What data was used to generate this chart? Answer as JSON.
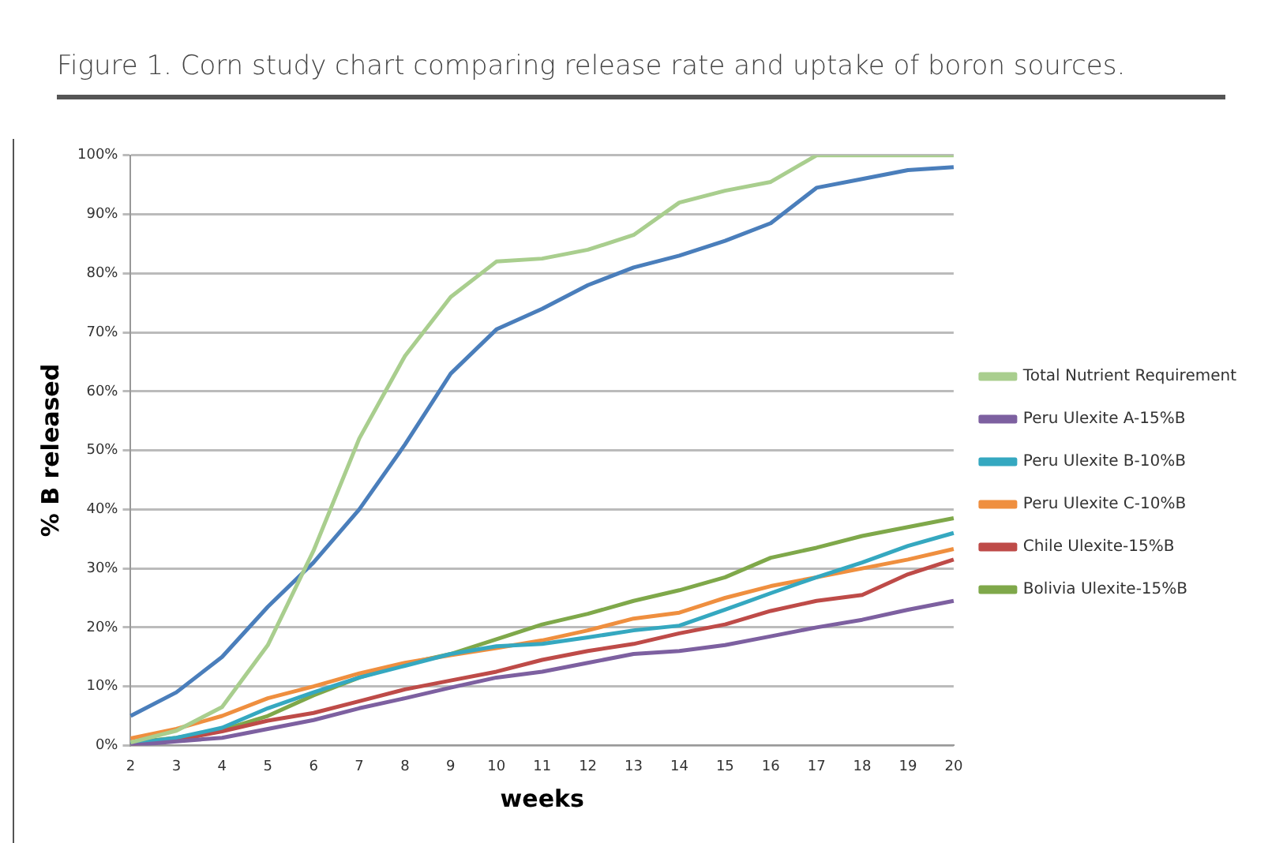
{
  "chart_data": {
    "type": "line",
    "title": "Figure 1. Corn study chart comparing release rate and uptake of boron sources.",
    "xlabel": "weeks",
    "ylabel": "% B released",
    "categories": [
      "2",
      "3",
      "4",
      "5",
      "6",
      "7",
      "8",
      "9",
      "10",
      "11",
      "12",
      "13",
      "14",
      "15",
      "16",
      "17",
      "18",
      "19",
      "20"
    ],
    "ylim": [
      0,
      100
    ],
    "yticks": [
      {
        "value": 0,
        "label": "0%"
      },
      {
        "value": 10,
        "label": "10%"
      },
      {
        "value": 20,
        "label": "20%"
      },
      {
        "value": 30,
        "label": "30%"
      },
      {
        "value": 40,
        "label": "40%"
      },
      {
        "value": 50,
        "label": "50%"
      },
      {
        "value": 60,
        "label": "60%"
      },
      {
        "value": 70,
        "label": "70%"
      },
      {
        "value": 80,
        "label": "80%"
      },
      {
        "value": 90,
        "label": "90%"
      },
      {
        "value": 100,
        "label": "100%"
      }
    ],
    "grid": "y",
    "legend": "right",
    "marker": "none",
    "line_style": "solid",
    "series": [
      {
        "name": "Total Nutrient Requirement",
        "color": "#a9ce8e",
        "values": [
          0.5,
          2.5,
          6.5,
          17,
          33,
          52,
          66,
          76,
          82,
          82.5,
          84,
          86.5,
          92,
          94,
          95.5,
          100,
          100,
          100,
          100
        ]
      },
      {
        "color": "#4a7ebb",
        "values": [
          5,
          9,
          15,
          23.5,
          31,
          40,
          51,
          63,
          70.5,
          74,
          78,
          81,
          83,
          85.5,
          88.5,
          94.5,
          96,
          97.5,
          98
        ]
      },
      {
        "name": "Peru Ulexite A-15%B",
        "color": "#7d60a0",
        "values": [
          0,
          0.7,
          1.3,
          2.8,
          4.3,
          6.3,
          8,
          9.8,
          11.5,
          12.5,
          14,
          15.5,
          16,
          17,
          18.5,
          20,
          21.3,
          23,
          24.5
        ]
      },
      {
        "name": "Peru Ulexite B-10%B",
        "color": "#35a8c0",
        "values": [
          0.3,
          1.3,
          3,
          6.3,
          9,
          11.5,
          13.5,
          15.5,
          16.8,
          17.2,
          18.3,
          19.5,
          20.3,
          23,
          25.8,
          28.5,
          31,
          33.8,
          36
        ]
      },
      {
        "name": "Peru Ulexite C-10%B",
        "color": "#ef8f3f",
        "values": [
          1.2,
          2.8,
          5,
          8,
          10,
          12.2,
          14,
          15.3,
          16.5,
          17.8,
          19.5,
          21.5,
          22.5,
          25,
          27,
          28.5,
          30,
          31.5,
          33.3
        ]
      },
      {
        "name": "Chile Ulexite-15%B",
        "color": "#be4b48",
        "values": [
          0.2,
          0.9,
          2.4,
          4.2,
          5.5,
          7.5,
          9.5,
          11,
          12.5,
          14.5,
          16,
          17.2,
          19,
          20.5,
          22.8,
          24.5,
          25.5,
          29,
          31.5
        ]
      },
      {
        "name": "Bolivia Ulexite-15%B",
        "color": "#7fa84a",
        "values": [
          0.5,
          1.3,
          2.6,
          5,
          8.5,
          11.5,
          13.8,
          15.5,
          18,
          20.5,
          22.3,
          24.5,
          26.3,
          28.5,
          31.8,
          33.5,
          35.5,
          37,
          38.5
        ]
      }
    ]
  }
}
